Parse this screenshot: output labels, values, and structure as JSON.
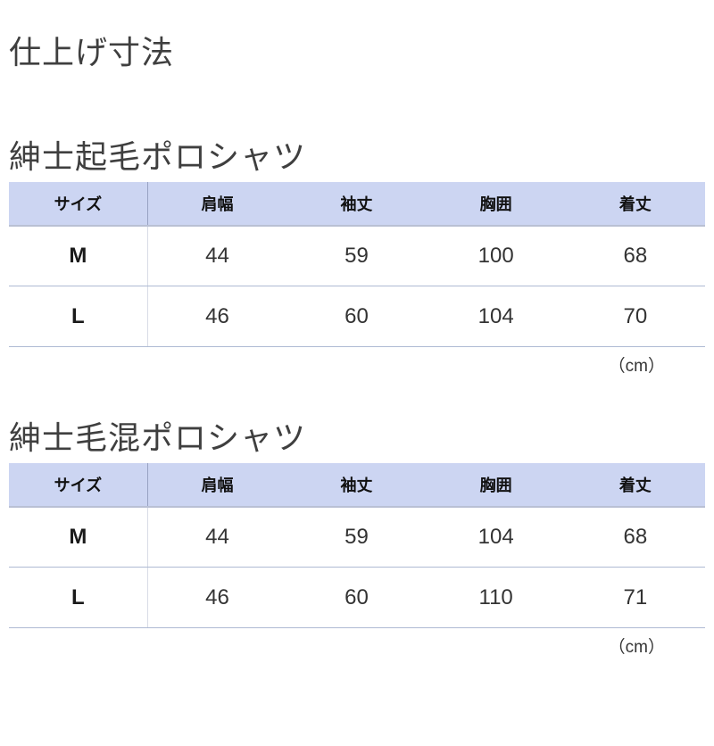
{
  "page": {
    "title": "仕上げ寸法"
  },
  "colors": {
    "header_bg": "#ccd5f2",
    "header_border": "#b9c0d4",
    "row_border": "#aebad3",
    "divider_header": "#98a2c2",
    "divider_body": "#d8dce6",
    "heading_text": "#3f3f3f",
    "cell_text": "#333333"
  },
  "tables": [
    {
      "section_title": "紳士起毛ポロシャツ",
      "columns": [
        "サイズ",
        "肩幅",
        "袖丈",
        "胸囲",
        "着丈"
      ],
      "rows": [
        {
          "size": "M",
          "values": [
            44,
            59,
            100,
            68
          ]
        },
        {
          "size": "L",
          "values": [
            46,
            60,
            104,
            70
          ]
        }
      ],
      "unit_note": "（cm）"
    },
    {
      "section_title": "紳士毛混ポロシャツ",
      "columns": [
        "サイズ",
        "肩幅",
        "袖丈",
        "胸囲",
        "着丈"
      ],
      "rows": [
        {
          "size": "M",
          "values": [
            44,
            59,
            104,
            68
          ]
        },
        {
          "size": "L",
          "values": [
            46,
            60,
            110,
            71
          ]
        }
      ],
      "unit_note": "（cm）"
    }
  ]
}
